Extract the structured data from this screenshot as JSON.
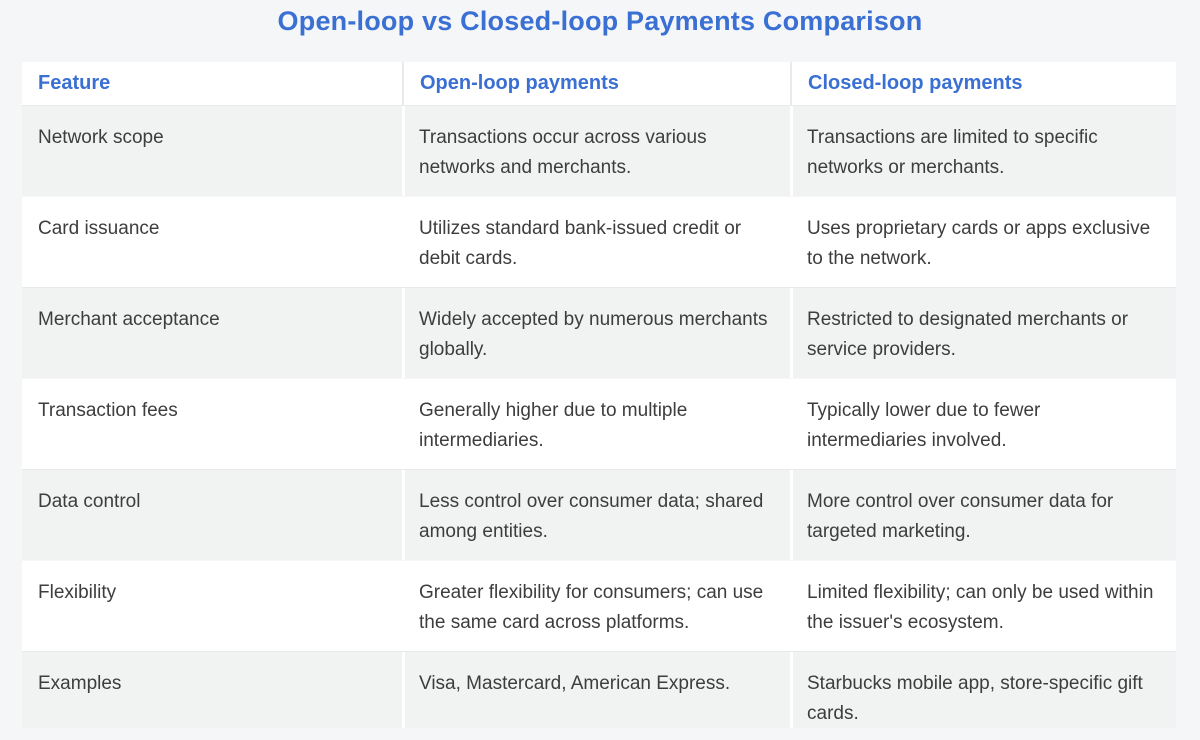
{
  "page": {
    "title": "Open-loop vs Closed-loop Payments Comparison",
    "accent_color": "#3a6fd3",
    "background_color": "#f5f6f8",
    "row_stripe_color": "#f1f2f2",
    "body_text_color": "#3d3d3d"
  },
  "table": {
    "columns": [
      "Feature",
      "Open-loop payments",
      "Closed-loop payments"
    ],
    "rows": [
      {
        "feature": "Network scope",
        "open_loop": "Transactions occur across various networks and merchants.",
        "closed_loop": "Transactions are limited to specific networks or merchants."
      },
      {
        "feature": "Card issuance",
        "open_loop": "Utilizes standard bank-issued credit or debit cards.",
        "closed_loop": "Uses proprietary cards or apps exclusive to the network."
      },
      {
        "feature": "Merchant acceptance",
        "open_loop": "Widely accepted by numerous merchants globally.",
        "closed_loop": "Restricted to designated merchants or service providers."
      },
      {
        "feature": "Transaction fees",
        "open_loop": "Generally higher due to multiple intermediaries.",
        "closed_loop": "Typically lower due to fewer intermediaries involved."
      },
      {
        "feature": "Data control",
        "open_loop": "Less control over consumer data; shared among entities.",
        "closed_loop": "More control over consumer data for targeted marketing."
      },
      {
        "feature": "Flexibility",
        "open_loop": "Greater flexibility for consumers; can use the same card across platforms.",
        "closed_loop": "Limited flexibility; can only be used within the issuer's ecosystem."
      },
      {
        "feature": "Examples",
        "open_loop": "Visa, Mastercard, American Express.",
        "closed_loop": "Starbucks mobile app, store-specific gift cards."
      }
    ]
  }
}
